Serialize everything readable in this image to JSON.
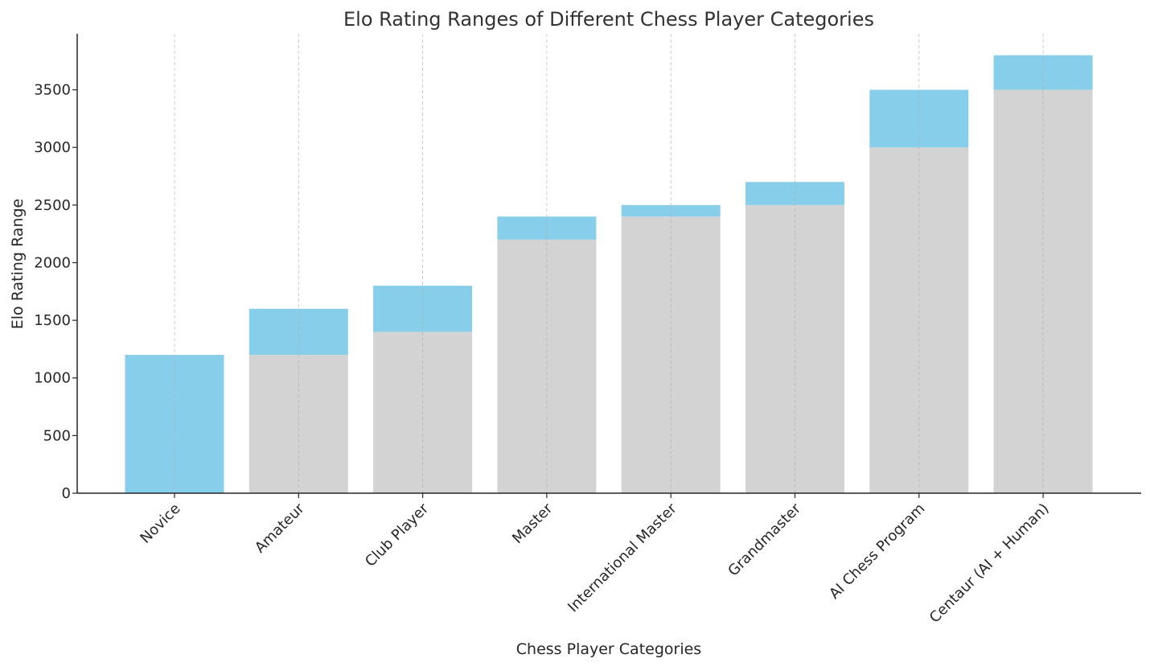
{
  "chart_data": {
    "type": "bar",
    "stacked": true,
    "title": "Elo Rating Ranges of Different Chess Player Categories",
    "xlabel": "Chess Player Categories",
    "ylabel": "Elo Rating Range",
    "categories": [
      "Novice",
      "Amateur",
      "Club Player",
      "Master",
      "International Master",
      "Grandmaster",
      "AI Chess Program",
      "Centaur (AI + Human)"
    ],
    "series": [
      {
        "values": [
          0,
          1200,
          1400,
          2200,
          2400,
          2500,
          3000,
          3500
        ],
        "color": "#d3d3d3"
      },
      {
        "values": [
          1200,
          400,
          400,
          200,
          100,
          200,
          500,
          300
        ],
        "color": "#87ceeb"
      }
    ],
    "ranges": [
      [
        0,
        1200
      ],
      [
        1200,
        1600
      ],
      [
        1400,
        1800
      ],
      [
        2200,
        2400
      ],
      [
        2400,
        2500
      ],
      [
        2500,
        2700
      ],
      [
        3000,
        3500
      ],
      [
        3500,
        3800
      ]
    ],
    "ylim": [
      0,
      4000
    ],
    "yticks": [
      0,
      500,
      1000,
      1500,
      2000,
      2500,
      3000,
      3500
    ],
    "grid": {
      "x": true,
      "y": false
    }
  }
}
